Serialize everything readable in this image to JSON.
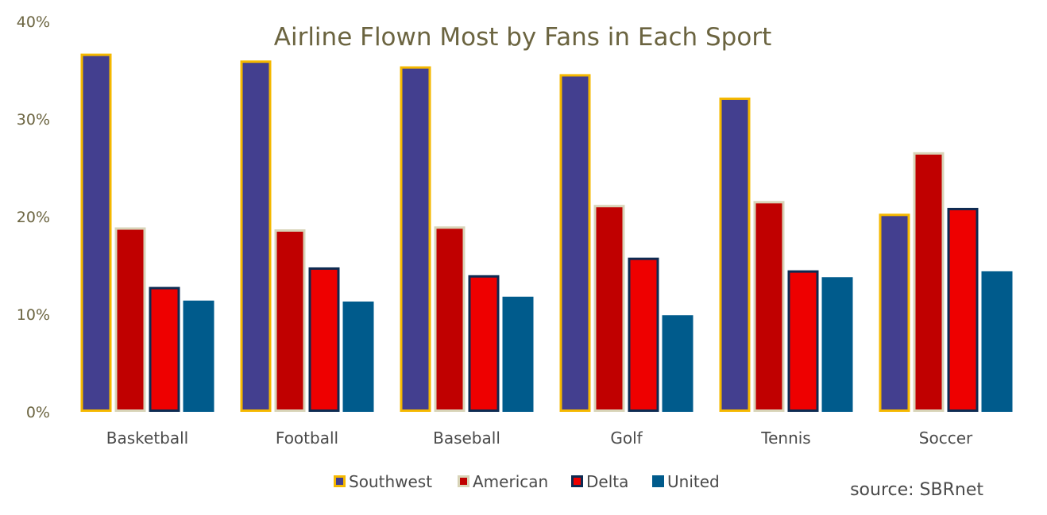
{
  "chart_data": {
    "type": "bar",
    "title": "Airline Flown Most by Fans in Each Sport",
    "xlabel": "",
    "ylabel": "",
    "ylim": [
      0,
      40
    ],
    "yticks": [
      "0%",
      "10%",
      "20%",
      "30%",
      "40%"
    ],
    "ytick_values": [
      0,
      10,
      20,
      30,
      40
    ],
    "grid": false,
    "legend_position": "bottom",
    "categories": [
      "Basketball",
      "Football",
      "Baseball",
      "Golf",
      "Tennis",
      "Soccer"
    ],
    "series": [
      {
        "name": "Southwest",
        "fill": "#433f8f",
        "stroke": "#f5b800",
        "values": [
          36.7,
          36.0,
          35.4,
          34.6,
          32.2,
          20.3
        ]
      },
      {
        "name": "American",
        "fill": "#c00000",
        "stroke": "#d8d4b8",
        "values": [
          18.9,
          18.7,
          19.0,
          21.2,
          21.6,
          26.6
        ]
      },
      {
        "name": "Delta",
        "fill": "#ee0000",
        "stroke": "#0d2b52",
        "values": [
          12.8,
          14.8,
          14.0,
          15.8,
          14.5,
          20.9
        ]
      },
      {
        "name": "United",
        "fill": "#005b8c",
        "stroke": "none",
        "values": [
          11.4,
          11.3,
          11.8,
          9.9,
          13.8,
          14.4
        ]
      }
    ],
    "annotation": "source: SBRnet"
  }
}
